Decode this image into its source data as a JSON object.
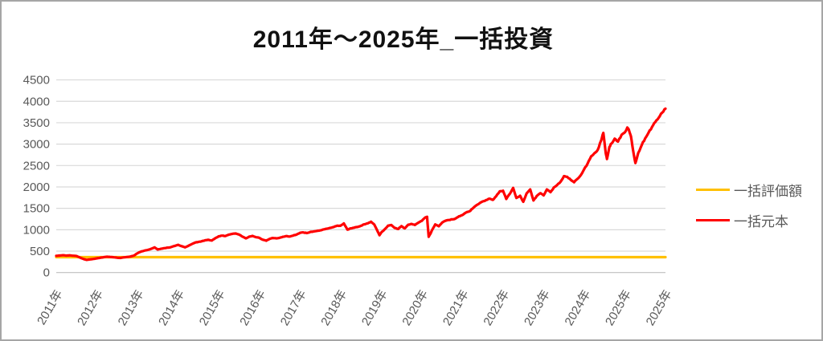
{
  "title": "2011年〜2025年_一括投資",
  "colors": {
    "background": "#FFFFFF",
    "border": "#A6A6A6",
    "grid": "#D9D9D9",
    "axis_line": "#BFBFBF",
    "axis_text": "#595959",
    "title_text": "#111111",
    "series_valuation": "#FFC000",
    "series_principal": "#FF0000"
  },
  "legend": {
    "position": "right",
    "items": [
      {
        "label": "一括評価額",
        "color": "#FFC000"
      },
      {
        "label": "一括元本",
        "color": "#FF0000"
      }
    ]
  },
  "chart_data": {
    "type": "line",
    "title": "2011年〜2025年_一括投資",
    "xlabel": "",
    "ylabel": "",
    "grid": true,
    "ylim": [
      0,
      4500
    ],
    "y_ticks": [
      0,
      500,
      1000,
      1500,
      2000,
      2500,
      3000,
      3500,
      4000,
      4500
    ],
    "xlim": [
      2011,
      2026
    ],
    "x_ticks": [
      {
        "pos": 2011,
        "label": "2011年"
      },
      {
        "pos": 2012,
        "label": "2012年"
      },
      {
        "pos": 2013,
        "label": "2013年"
      },
      {
        "pos": 2014,
        "label": "2014年"
      },
      {
        "pos": 2015,
        "label": "2015年"
      },
      {
        "pos": 2016,
        "label": "2016年"
      },
      {
        "pos": 2017,
        "label": "2017年"
      },
      {
        "pos": 2018,
        "label": "2018年"
      },
      {
        "pos": 2019,
        "label": "2019年"
      },
      {
        "pos": 2020,
        "label": "2020年"
      },
      {
        "pos": 2021,
        "label": "2021年"
      },
      {
        "pos": 2022,
        "label": "2022年"
      },
      {
        "pos": 2023,
        "label": "2023年"
      },
      {
        "pos": 2024,
        "label": "2024年"
      },
      {
        "pos": 2025,
        "label": "2025年"
      },
      {
        "pos": 2026,
        "label": "2025年"
      }
    ],
    "series": [
      {
        "name": "一括評価額",
        "color": "#FFC000",
        "points": [
          [
            2011.0,
            360
          ],
          [
            2026.0,
            360
          ]
        ]
      },
      {
        "name": "一括元本",
        "color": "#FF0000",
        "points": [
          [
            2011.0,
            390
          ],
          [
            2011.08,
            398
          ],
          [
            2011.17,
            404
          ],
          [
            2011.25,
            396
          ],
          [
            2011.33,
            402
          ],
          [
            2011.42,
            394
          ],
          [
            2011.5,
            386
          ],
          [
            2011.58,
            352
          ],
          [
            2011.67,
            316
          ],
          [
            2011.75,
            296
          ],
          [
            2011.83,
            308
          ],
          [
            2011.92,
            318
          ],
          [
            2012.0,
            332
          ],
          [
            2012.08,
            344
          ],
          [
            2012.17,
            360
          ],
          [
            2012.25,
            372
          ],
          [
            2012.33,
            364
          ],
          [
            2012.42,
            356
          ],
          [
            2012.5,
            346
          ],
          [
            2012.58,
            342
          ],
          [
            2012.67,
            356
          ],
          [
            2012.75,
            366
          ],
          [
            2012.83,
            374
          ],
          [
            2012.92,
            400
          ],
          [
            2013.0,
            452
          ],
          [
            2013.08,
            488
          ],
          [
            2013.17,
            512
          ],
          [
            2013.25,
            528
          ],
          [
            2013.33,
            552
          ],
          [
            2013.42,
            588
          ],
          [
            2013.5,
            538
          ],
          [
            2013.58,
            556
          ],
          [
            2013.67,
            572
          ],
          [
            2013.75,
            582
          ],
          [
            2013.83,
            596
          ],
          [
            2013.92,
            622
          ],
          [
            2014.0,
            648
          ],
          [
            2014.08,
            618
          ],
          [
            2014.17,
            588
          ],
          [
            2014.25,
            622
          ],
          [
            2014.33,
            662
          ],
          [
            2014.42,
            700
          ],
          [
            2014.5,
            716
          ],
          [
            2014.58,
            730
          ],
          [
            2014.67,
            756
          ],
          [
            2014.75,
            764
          ],
          [
            2014.83,
            748
          ],
          [
            2014.92,
            806
          ],
          [
            2015.0,
            848
          ],
          [
            2015.08,
            862
          ],
          [
            2015.17,
            854
          ],
          [
            2015.25,
            886
          ],
          [
            2015.33,
            902
          ],
          [
            2015.42,
            912
          ],
          [
            2015.5,
            888
          ],
          [
            2015.58,
            842
          ],
          [
            2015.67,
            798
          ],
          [
            2015.75,
            838
          ],
          [
            2015.83,
            856
          ],
          [
            2015.92,
            824
          ],
          [
            2016.0,
            812
          ],
          [
            2016.08,
            768
          ],
          [
            2016.17,
            744
          ],
          [
            2016.25,
            786
          ],
          [
            2016.33,
            808
          ],
          [
            2016.42,
            798
          ],
          [
            2016.5,
            812
          ],
          [
            2016.58,
            836
          ],
          [
            2016.67,
            852
          ],
          [
            2016.75,
            842
          ],
          [
            2016.83,
            862
          ],
          [
            2016.92,
            888
          ],
          [
            2017.0,
            928
          ],
          [
            2017.08,
            938
          ],
          [
            2017.17,
            922
          ],
          [
            2017.25,
            946
          ],
          [
            2017.33,
            958
          ],
          [
            2017.42,
            972
          ],
          [
            2017.5,
            986
          ],
          [
            2017.58,
            1008
          ],
          [
            2017.67,
            1026
          ],
          [
            2017.75,
            1044
          ],
          [
            2017.83,
            1062
          ],
          [
            2017.92,
            1096
          ],
          [
            2018.0,
            1092
          ],
          [
            2018.08,
            1148
          ],
          [
            2018.17,
            1002
          ],
          [
            2018.25,
            1032
          ],
          [
            2018.33,
            1048
          ],
          [
            2018.42,
            1064
          ],
          [
            2018.5,
            1092
          ],
          [
            2018.58,
            1126
          ],
          [
            2018.67,
            1148
          ],
          [
            2018.75,
            1188
          ],
          [
            2018.83,
            1122
          ],
          [
            2018.92,
            948
          ],
          [
            2018.96,
            872
          ],
          [
            2019.0,
            936
          ],
          [
            2019.08,
            1004
          ],
          [
            2019.17,
            1096
          ],
          [
            2019.25,
            1112
          ],
          [
            2019.33,
            1044
          ],
          [
            2019.42,
            1018
          ],
          [
            2019.5,
            1086
          ],
          [
            2019.58,
            1032
          ],
          [
            2019.67,
            1118
          ],
          [
            2019.75,
            1136
          ],
          [
            2019.83,
            1112
          ],
          [
            2019.92,
            1168
          ],
          [
            2020.0,
            1206
          ],
          [
            2020.08,
            1282
          ],
          [
            2020.13,
            1302
          ],
          [
            2020.17,
            836
          ],
          [
            2020.21,
            902
          ],
          [
            2020.25,
            986
          ],
          [
            2020.33,
            1124
          ],
          [
            2020.42,
            1082
          ],
          [
            2020.5,
            1168
          ],
          [
            2020.58,
            1208
          ],
          [
            2020.67,
            1228
          ],
          [
            2020.75,
            1242
          ],
          [
            2020.83,
            1262
          ],
          [
            2020.92,
            1316
          ],
          [
            2021.0,
            1342
          ],
          [
            2021.08,
            1398
          ],
          [
            2021.17,
            1428
          ],
          [
            2021.25,
            1496
          ],
          [
            2021.33,
            1562
          ],
          [
            2021.42,
            1618
          ],
          [
            2021.5,
            1662
          ],
          [
            2021.58,
            1692
          ],
          [
            2021.67,
            1726
          ],
          [
            2021.75,
            1698
          ],
          [
            2021.83,
            1782
          ],
          [
            2021.92,
            1896
          ],
          [
            2022.0,
            1912
          ],
          [
            2022.08,
            1718
          ],
          [
            2022.17,
            1842
          ],
          [
            2022.25,
            1978
          ],
          [
            2022.33,
            1742
          ],
          [
            2022.42,
            1796
          ],
          [
            2022.5,
            1652
          ],
          [
            2022.58,
            1848
          ],
          [
            2022.67,
            1942
          ],
          [
            2022.75,
            1682
          ],
          [
            2022.83,
            1788
          ],
          [
            2022.92,
            1856
          ],
          [
            2023.0,
            1802
          ],
          [
            2023.08,
            1942
          ],
          [
            2023.17,
            1878
          ],
          [
            2023.25,
            1986
          ],
          [
            2023.33,
            2042
          ],
          [
            2023.42,
            2126
          ],
          [
            2023.5,
            2252
          ],
          [
            2023.58,
            2238
          ],
          [
            2023.67,
            2162
          ],
          [
            2023.75,
            2108
          ],
          [
            2023.83,
            2186
          ],
          [
            2023.92,
            2282
          ],
          [
            2024.0,
            2418
          ],
          [
            2024.08,
            2542
          ],
          [
            2024.17,
            2716
          ],
          [
            2024.25,
            2788
          ],
          [
            2024.33,
            2862
          ],
          [
            2024.42,
            3096
          ],
          [
            2024.47,
            3262
          ],
          [
            2024.53,
            2788
          ],
          [
            2024.56,
            2652
          ],
          [
            2024.62,
            2936
          ],
          [
            2024.67,
            3012
          ],
          [
            2024.75,
            3128
          ],
          [
            2024.83,
            3058
          ],
          [
            2024.92,
            3218
          ],
          [
            2025.0,
            3276
          ],
          [
            2025.06,
            3388
          ],
          [
            2025.1,
            3332
          ],
          [
            2025.15,
            3186
          ],
          [
            2025.2,
            2866
          ],
          [
            2025.26,
            2558
          ],
          [
            2025.33,
            2792
          ],
          [
            2025.42,
            2988
          ],
          [
            2025.5,
            3134
          ],
          [
            2025.58,
            3262
          ],
          [
            2025.67,
            3402
          ],
          [
            2025.75,
            3516
          ],
          [
            2025.83,
            3612
          ],
          [
            2025.92,
            3736
          ],
          [
            2026.0,
            3828
          ]
        ]
      }
    ],
    "legend_position": "right"
  }
}
